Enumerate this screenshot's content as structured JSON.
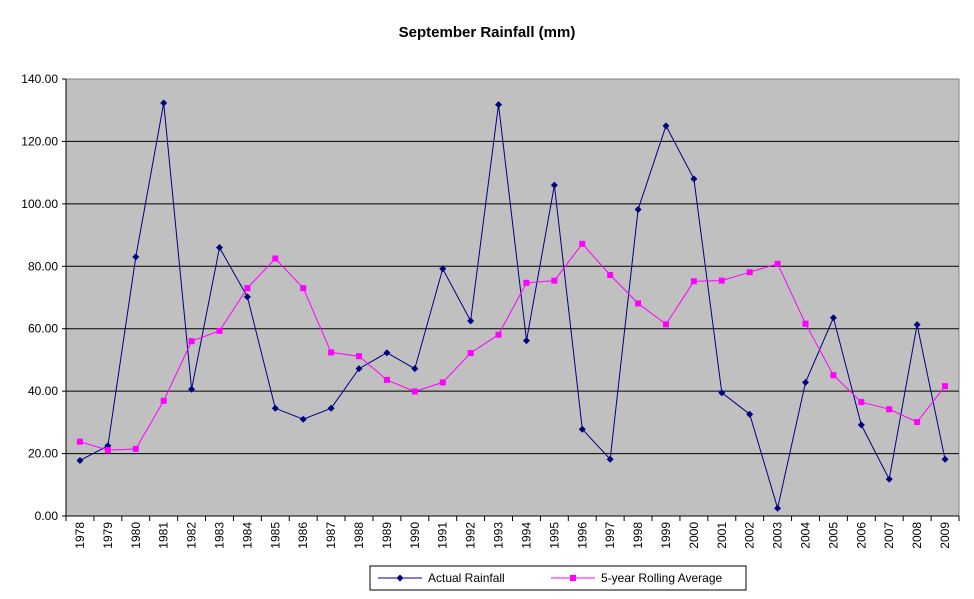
{
  "chart_data": {
    "type": "line",
    "title": "September Rainfall (mm)",
    "xlabel": "",
    "ylabel": "",
    "ylim": [
      0,
      140
    ],
    "y_ticks": [
      "0.00",
      "20.00",
      "40.00",
      "60.00",
      "80.00",
      "100.00",
      "120.00",
      "140.00"
    ],
    "categories": [
      "1978",
      "1979",
      "1980",
      "1981",
      "1982",
      "1983",
      "1984",
      "1985",
      "1986",
      "1987",
      "1988",
      "1989",
      "1990",
      "1991",
      "1992",
      "1993",
      "1994",
      "1995",
      "1996",
      "1997",
      "1998",
      "1999",
      "2000",
      "2001",
      "2002",
      "2003",
      "2004",
      "2005",
      "2006",
      "2007",
      "2008",
      "2009"
    ],
    "grid": "horizontal",
    "legend_position": "bottom",
    "plot_background": "#c0c0c0",
    "series": [
      {
        "name": "Actual Rainfall",
        "color": "#000080",
        "marker": "diamond",
        "values": [
          17.8,
          22.5,
          83.0,
          132.3,
          40.6,
          86.0,
          70.2,
          34.5,
          31.0,
          34.5,
          47.2,
          52.3,
          47.2,
          79.2,
          62.5,
          131.8,
          56.2,
          106.0,
          27.8,
          18.2,
          98.2,
          125.0,
          108.0,
          39.5,
          32.6,
          2.5,
          42.8,
          63.5,
          29.2,
          11.8,
          61.3,
          18.2
        ]
      },
      {
        "name": "5-year Rolling Average",
        "color": "#ff00ff",
        "marker": "square",
        "values": [
          23.8,
          21.1,
          21.5,
          36.9,
          56.0,
          59.3,
          73.0,
          82.5,
          73.0,
          52.4,
          51.2,
          43.6,
          39.9,
          42.8,
          52.2,
          58.1,
          74.7,
          75.4,
          87.2,
          77.2,
          68.1,
          61.4,
          75.2,
          75.4,
          78.1,
          80.8,
          61.6,
          45.1,
          36.5,
          34.2,
          30.1,
          41.6
        ]
      }
    ]
  }
}
